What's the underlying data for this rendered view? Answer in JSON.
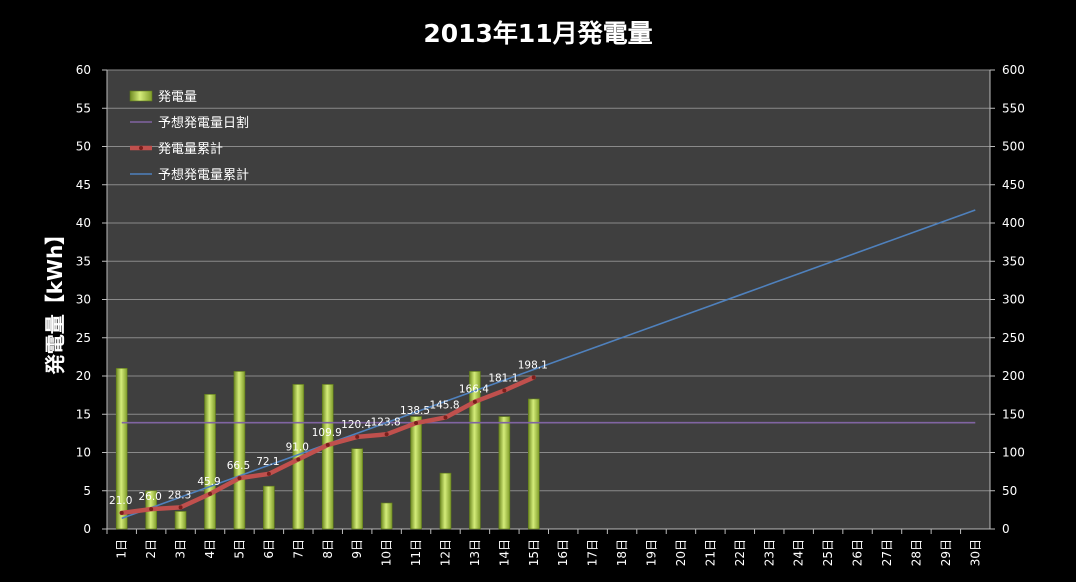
{
  "chart_data": {
    "type": "bar",
    "title": "2013年11月発電量",
    "ylabel": "発電量【kWh】",
    "ylim": [
      0,
      60
    ],
    "y2lim": [
      0,
      600
    ],
    "yticks": [
      0,
      5,
      10,
      15,
      20,
      25,
      30,
      35,
      40,
      45,
      50,
      55,
      60
    ],
    "y2ticks": [
      0,
      50,
      100,
      150,
      200,
      250,
      300,
      350,
      400,
      450,
      500,
      550,
      600
    ],
    "categories": [
      "1日",
      "2日",
      "3日",
      "4日",
      "5日",
      "6日",
      "7日",
      "8日",
      "9日",
      "10日",
      "11日",
      "12日",
      "13日",
      "14日",
      "15日",
      "16日",
      "17日",
      "18日",
      "19日",
      "20日",
      "21日",
      "22日",
      "23日",
      "24日",
      "25日",
      "26日",
      "27日",
      "28日",
      "29日",
      "30日"
    ],
    "legend_position": "top-left",
    "series": [
      {
        "name": "発電量",
        "kind": "bar",
        "axis": "left",
        "color": "#9bbb3a",
        "values": [
          21.0,
          5.0,
          2.3,
          17.6,
          20.6,
          5.6,
          18.9,
          18.9,
          10.5,
          3.4,
          14.7,
          7.3,
          20.6,
          14.7,
          17.0,
          null,
          null,
          null,
          null,
          null,
          null,
          null,
          null,
          null,
          null,
          null,
          null,
          null,
          null,
          null
        ]
      },
      {
        "name": "予想発電量日割",
        "kind": "line",
        "axis": "left",
        "color": "#8064a2",
        "values": [
          13.9,
          13.9,
          13.9,
          13.9,
          13.9,
          13.9,
          13.9,
          13.9,
          13.9,
          13.9,
          13.9,
          13.9,
          13.9,
          13.9,
          13.9,
          13.9,
          13.9,
          13.9,
          13.9,
          13.9,
          13.9,
          13.9,
          13.9,
          13.9,
          13.9,
          13.9,
          13.9,
          13.9,
          13.9,
          13.9
        ]
      },
      {
        "name": "発電量累計",
        "kind": "line-markers",
        "axis": "right",
        "color": "#c0504d",
        "values": [
          21.0,
          26.0,
          28.3,
          45.9,
          66.5,
          72.1,
          91.0,
          109.9,
          120.4,
          123.8,
          138.5,
          145.8,
          166.4,
          181.1,
          198.1,
          null,
          null,
          null,
          null,
          null,
          null,
          null,
          null,
          null,
          null,
          null,
          null,
          null,
          null,
          null
        ],
        "labels": [
          "21.0",
          "26.0",
          "28.3",
          "45.9",
          "66.5",
          "72.1",
          "91.0",
          "109.9",
          "120.4",
          "123.8",
          "138.5",
          "145.8",
          "166.4",
          "181.1",
          "198.1"
        ]
      },
      {
        "name": "予想発電量累計",
        "kind": "line",
        "axis": "right",
        "color": "#4f81bd",
        "values": [
          13.9,
          27.8,
          41.7,
          55.6,
          69.5,
          83.4,
          97.3,
          111.2,
          125.1,
          139.0,
          152.9,
          166.8,
          180.7,
          194.6,
          208.5,
          222.4,
          236.3,
          250.2,
          264.1,
          278.0,
          291.9,
          305.8,
          319.7,
          333.6,
          347.5,
          361.4,
          375.3,
          389.2,
          403.1,
          417.0
        ]
      }
    ],
    "grid": true,
    "background": "#3f3f3f"
  }
}
